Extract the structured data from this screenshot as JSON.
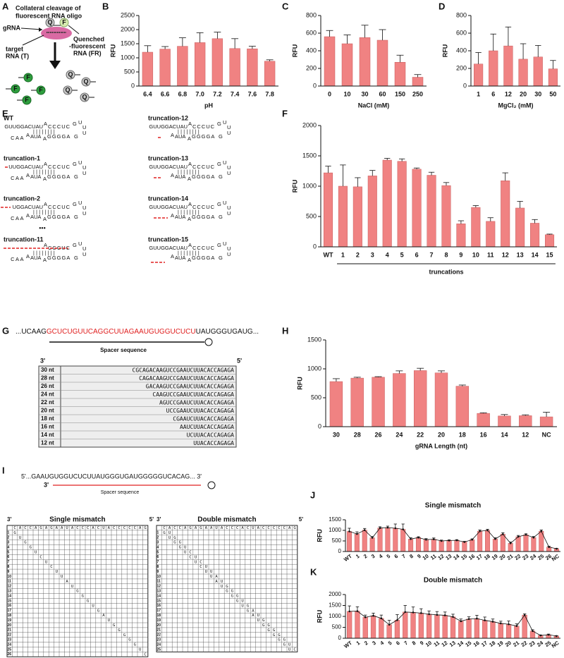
{
  "panel_labels": [
    "A",
    "B",
    "C",
    "D",
    "E",
    "F",
    "G",
    "H",
    "I",
    "J",
    "K"
  ],
  "panel_a": {
    "title_lines": [
      "Collateral cleavage of",
      "fluorescent RNA oligo"
    ],
    "grna": "gRNA",
    "target_lines": [
      "target",
      "RNA (T)"
    ],
    "quenched_lines": [
      "Quenched",
      "-fluorescent",
      "RNA (FR)"
    ],
    "fluor": "F",
    "quencher": "Q"
  },
  "chart_data": [
    {
      "type": "bar",
      "categories": [
        "6.4",
        "6.6",
        "6.8",
        "7.0",
        "7.2",
        "7.4",
        "7.6",
        "7.8"
      ],
      "values": [
        1200,
        1310,
        1410,
        1540,
        1680,
        1330,
        1320,
        880
      ],
      "errors": [
        230,
        90,
        300,
        350,
        230,
        350,
        90,
        50
      ],
      "color": "#f08282",
      "ylim": [
        0,
        2500
      ],
      "yticks": [
        0,
        500,
        1000,
        1500,
        2000,
        2500
      ],
      "ylabel": "RFU",
      "xlabel": "pH"
    },
    {
      "type": "bar",
      "categories": [
        "0",
        "10",
        "30",
        "60",
        "150",
        "250"
      ],
      "values": [
        560,
        480,
        550,
        520,
        270,
        100
      ],
      "errors": [
        70,
        100,
        140,
        120,
        80,
        30
      ],
      "color": "#f08282",
      "ylim": [
        0,
        800
      ],
      "yticks": [
        0,
        200,
        400,
        600,
        800
      ],
      "ylabel": "RFU",
      "xlabel": "NaCl (mM)"
    },
    {
      "type": "bar",
      "categories": [
        "1",
        "6",
        "12",
        "20",
        "30",
        "50"
      ],
      "values": [
        250,
        400,
        455,
        305,
        330,
        195
      ],
      "errors": [
        130,
        190,
        215,
        175,
        130,
        95
      ],
      "color": "#f08282",
      "ylim": [
        0,
        800
      ],
      "yticks": [
        0,
        200,
        400,
        600,
        800
      ],
      "ylabel": "RFU",
      "xlabel": "MgCl₂ (mM)"
    },
    {
      "type": "bar",
      "categories": [
        "WT",
        "1",
        "2",
        "3",
        "4",
        "5",
        "6",
        "7",
        "8",
        "9",
        "10",
        "11",
        "12",
        "13",
        "14",
        "15"
      ],
      "values": [
        1220,
        1000,
        990,
        1170,
        1430,
        1410,
        1280,
        1180,
        1010,
        380,
        650,
        420,
        1090,
        640,
        390,
        200
      ],
      "errors": [
        110,
        350,
        150,
        90,
        30,
        40,
        20,
        50,
        50,
        50,
        30,
        60,
        130,
        110,
        60,
        10
      ],
      "color": "#f08282",
      "ylim": [
        0,
        2000
      ],
      "yticks": [
        0,
        500,
        1000,
        1500,
        2000
      ],
      "ylabel": "RFU",
      "xlabel": "truncations"
    },
    {
      "type": "bar",
      "categories": [
        "30",
        "28",
        "26",
        "24",
        "22",
        "20",
        "18",
        "16",
        "14",
        "12",
        "NC"
      ],
      "values": [
        780,
        840,
        855,
        920,
        970,
        930,
        700,
        230,
        185,
        190,
        170
      ],
      "errors": [
        50,
        15,
        10,
        45,
        40,
        35,
        20,
        10,
        25,
        15,
        80
      ],
      "color": "#f08282",
      "ylim": [
        0,
        1500
      ],
      "yticks": [
        0,
        500,
        1000,
        1500
      ],
      "ylabel": "RFU",
      "xlabel": "gRNA Length (nt)"
    },
    {
      "type": "bar",
      "title": "Single mismatch",
      "line": true,
      "categories": [
        "WT",
        "1",
        "2",
        "3",
        "4",
        "5",
        "6",
        "7",
        "8",
        "9",
        "10",
        "11",
        "12",
        "13",
        "14",
        "15",
        "16",
        "17",
        "18",
        "19",
        "20",
        "21",
        "22",
        "23",
        "24",
        "25",
        "26",
        "NC"
      ],
      "values": [
        950,
        830,
        1010,
        650,
        1110,
        1130,
        1100,
        1050,
        590,
        660,
        560,
        580,
        500,
        520,
        530,
        450,
        560,
        960,
        1000,
        590,
        820,
        390,
        700,
        790,
        660,
        960,
        210,
        130
      ],
      "errors": [
        150,
        100,
        80,
        60,
        60,
        70,
        200,
        250,
        60,
        40,
        50,
        60,
        40,
        30,
        30,
        30,
        40,
        60,
        50,
        60,
        70,
        60,
        60,
        50,
        50,
        60,
        40,
        20
      ],
      "color": "#f08282",
      "ylim": [
        0,
        1500
      ],
      "yticks": [
        0,
        500,
        1000,
        1500
      ],
      "ylabel": "RFU"
    },
    {
      "type": "bar",
      "title": "Double mismatch",
      "line": true,
      "categories": [
        "WT",
        "1",
        "2",
        "3",
        "4",
        "5",
        "6",
        "7",
        "8",
        "9",
        "10",
        "11",
        "12",
        "13",
        "14",
        "15",
        "16",
        "17",
        "18",
        "19",
        "20",
        "21",
        "22",
        "23",
        "24",
        "25",
        "NC"
      ],
      "values": [
        1230,
        1240,
        960,
        1030,
        910,
        620,
        830,
        1200,
        1180,
        1150,
        1100,
        1070,
        1050,
        980,
        780,
        880,
        900,
        820,
        760,
        680,
        640,
        560,
        1060,
        330,
        130,
        160,
        100
      ],
      "errors": [
        250,
        200,
        100,
        120,
        150,
        200,
        250,
        300,
        250,
        200,
        150,
        150,
        150,
        120,
        100,
        100,
        150,
        150,
        120,
        100,
        150,
        100,
        60,
        60,
        20,
        30,
        20
      ],
      "color": "#f08282",
      "ylim": [
        0,
        2000
      ],
      "yticks": [
        0,
        500,
        1000,
        1500,
        2000
      ],
      "ylabel": "RFU"
    }
  ],
  "panel_e": {
    "structures": [
      {
        "label": "WT",
        "top": "GUUGGACUAU",
        "tail": "CAA"
      },
      {
        "label": "truncation-1",
        "top": "UUGGACUAU",
        "tail": "CAA"
      },
      {
        "label": "truncation-2",
        "top": "UGGACUAU",
        "tail": "CAA"
      },
      {
        "label": "truncation-11",
        "tail": "CAA"
      },
      {
        "label": "truncation-12",
        "top": "GUUGGACUAU"
      },
      {
        "label": "truncation-13",
        "top": "GUUGGACUAU"
      },
      {
        "label": "truncation-14",
        "top": "GUUGGACUAU"
      },
      {
        "label": "truncation-15",
        "top": "GUUGGACUAU"
      }
    ],
    "common": {
      "bulge": "A",
      "stem5": "CCCUC",
      "pairs": "||||||||",
      "joint": "A",
      "inner": "AUA",
      "bulge2": "A",
      "stem3": "GGGGA",
      "loop": [
        "G",
        "U",
        "U",
        "U",
        "G"
      ]
    },
    "ellipsis": "•••"
  },
  "panel_g": {
    "seq_left": "...UCAAG",
    "seq_spacer": "GCUCUGUUCAGGCUUAGAAUGUGGUCUCU",
    "seq_right": "UAUGGGUGAUG...",
    "spacer_label": "Spacer sequence",
    "end3": "3'",
    "end5": "5'",
    "rows": [
      [
        "30 nt",
        "CGCAGACAAGUCCGAAUCUUACACCAGAGA"
      ],
      [
        "28 nt",
        "CAGACAAGUCCGAAUCUUACACCAGAGA"
      ],
      [
        "26 nt",
        "GACAAGUCCGAAUCUUACACCAGAGA"
      ],
      [
        "24 nt",
        "CAAGUCCGAAUCUUACACCAGAGA"
      ],
      [
        "22 nt",
        "AGUCCGAAUCUUACACCAGAGA"
      ],
      [
        "20 nt",
        "UCCGAAUCUUACACCAGAGA"
      ],
      [
        "18 nt",
        "CGAAUCUUACACCAGAGA"
      ],
      [
        "16 nt",
        "AAUCUUACACCAGAGA"
      ],
      [
        "14 nt",
        "UCUUACACCAGAGA"
      ],
      [
        "12 nt",
        "UUACACCAGAGA"
      ]
    ]
  },
  "panel_i": {
    "seq": "5'...GAAUGUGGUCUCUUAUGGGUGAUGGGGGUCACAG... 3'",
    "end3": "3'",
    "end5": "5'",
    "spacer_label": "Spacer sequence",
    "single": {
      "title": "Single mismatch",
      "header": [
        "C",
        "A",
        "C",
        "C",
        "A",
        "G",
        "A",
        "G",
        "A",
        "A",
        "U",
        "A",
        "C",
        "C",
        "C",
        "A",
        "C",
        "U",
        "A",
        "C",
        "C",
        "C",
        "C",
        "C",
        "A",
        "G"
      ],
      "rows": [
        1,
        2,
        3,
        4,
        5,
        6,
        7,
        8,
        9,
        10,
        11,
        12,
        13,
        14,
        15,
        16,
        17,
        18,
        19,
        20,
        21,
        22,
        23,
        24,
        25,
        26
      ],
      "mismatches": [
        [
          "G"
        ],
        [
          "U"
        ],
        [
          "G"
        ],
        [
          "G"
        ],
        [
          "U"
        ],
        [
          "C"
        ],
        [
          "U"
        ],
        [
          "C"
        ],
        [
          "U"
        ],
        [
          "U"
        ],
        [
          "A"
        ],
        [
          "U"
        ],
        [
          "G"
        ],
        [
          "G"
        ],
        [
          "G"
        ],
        [
          "U"
        ],
        [
          "G"
        ],
        [
          "A"
        ],
        [
          "U"
        ],
        [
          "G"
        ],
        [
          "G"
        ],
        [
          "G"
        ],
        [
          "G"
        ],
        [
          "G"
        ],
        [
          "U"
        ],
        [
          "C"
        ]
      ]
    },
    "double": {
      "title": "Double mismatch",
      "header": [
        "C",
        "A",
        "C",
        "C",
        "A",
        "G",
        "A",
        "G",
        "A",
        "A",
        "U",
        "A",
        "C",
        "C",
        "C",
        "A",
        "C",
        "U",
        "A",
        "C",
        "C",
        "C",
        "C",
        "C",
        "A",
        "G"
      ],
      "rows": [
        1,
        2,
        3,
        4,
        5,
        6,
        7,
        8,
        9,
        10,
        11,
        12,
        13,
        14,
        15,
        16,
        17,
        18,
        19,
        20,
        21,
        22,
        23,
        24,
        25
      ],
      "mismatches": [
        [
          "G",
          "U"
        ],
        [
          "U",
          "G"
        ],
        [
          "G",
          "G"
        ],
        [
          "G",
          "U"
        ],
        [
          "U",
          "C"
        ],
        [
          "C",
          "U"
        ],
        [
          "U",
          "C"
        ],
        [
          "C",
          "U"
        ],
        [
          "U",
          "U"
        ],
        [
          "U",
          "A"
        ],
        [
          "A",
          "U"
        ],
        [
          "U",
          "G"
        ],
        [
          "G",
          "G"
        ],
        [
          "G",
          "G"
        ],
        [
          "G",
          "U"
        ],
        [
          "U",
          "G"
        ],
        [
          "G",
          "A"
        ],
        [
          "A",
          "U"
        ],
        [
          "U",
          "G"
        ],
        [
          "G",
          "G"
        ],
        [
          "G",
          "G"
        ],
        [
          "G",
          "G"
        ],
        [
          "G",
          "G"
        ],
        [
          "G",
          "U"
        ],
        [
          "U",
          "C"
        ]
      ]
    }
  }
}
